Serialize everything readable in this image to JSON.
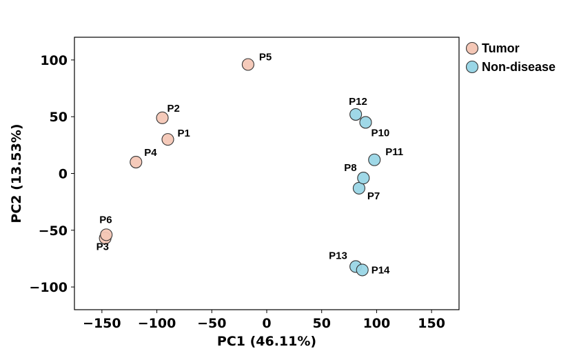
{
  "chart_data": {
    "type": "scatter",
    "title": "",
    "xlabel": "PC1 (46.11%)",
    "ylabel": "PC2 (13.53%)",
    "xlim": [
      -175,
      175
    ],
    "ylim": [
      -120,
      120
    ],
    "xticks": [
      "−150",
      "−100",
      "−50",
      "0",
      "50",
      "100",
      "150"
    ],
    "xtick_values": [
      -150,
      -100,
      -50,
      0,
      50,
      100,
      150
    ],
    "yticks": [
      "100",
      "50",
      "0",
      "−50",
      "−100"
    ],
    "ytick_values": [
      100,
      50,
      0,
      -50,
      -100
    ],
    "grid": false,
    "legend_position": "outside-top-right",
    "series": [
      {
        "name": "Tumor",
        "color": "#f4c7b6",
        "points": [
          {
            "label": "P1",
            "x": -90,
            "y": 30
          },
          {
            "label": "P2",
            "x": -95,
            "y": 49
          },
          {
            "label": "P3",
            "x": -147,
            "y": -57
          },
          {
            "label": "P4",
            "x": -119,
            "y": 10
          },
          {
            "label": "P5",
            "x": -17,
            "y": 96
          },
          {
            "label": "P6",
            "x": -146,
            "y": -54
          }
        ]
      },
      {
        "name": "Non-disease",
        "color": "#9ad6e6",
        "points": [
          {
            "label": "P7",
            "x": 84,
            "y": -13
          },
          {
            "label": "P8",
            "x": 88,
            "y": -4
          },
          {
            "label": "P10",
            "x": 90,
            "y": 45
          },
          {
            "label": "P11",
            "x": 98,
            "y": 12
          },
          {
            "label": "P12",
            "x": 81,
            "y": 52
          },
          {
            "label": "P13",
            "x": 81,
            "y": -82
          },
          {
            "label": "P14",
            "x": 87,
            "y": -85
          }
        ]
      }
    ]
  }
}
